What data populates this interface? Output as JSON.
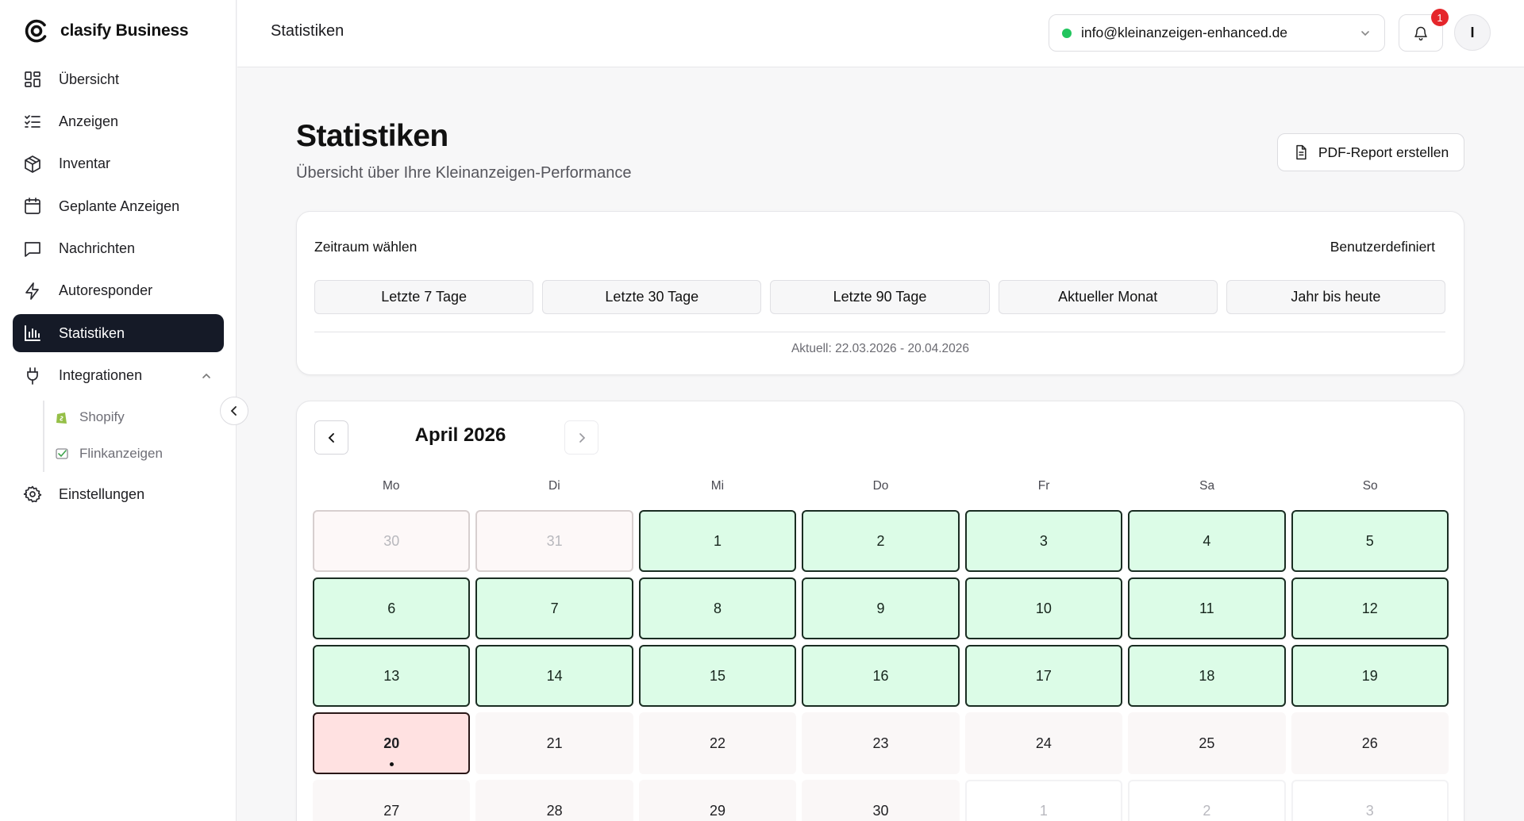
{
  "brand": {
    "name": "clasify Business"
  },
  "sidebar": {
    "items": [
      {
        "label": "Übersicht",
        "icon": "dashboard-icon"
      },
      {
        "label": "Anzeigen",
        "icon": "list-check-icon"
      },
      {
        "label": "Inventar",
        "icon": "box-icon"
      },
      {
        "label": "Geplante Anzeigen",
        "icon": "calendar-icon"
      },
      {
        "label": "Nachrichten",
        "icon": "message-icon"
      },
      {
        "label": "Autoresponder",
        "icon": "lightning-icon"
      },
      {
        "label": "Statistiken",
        "icon": "bar-chart-icon",
        "active": true
      },
      {
        "label": "Integrationen",
        "icon": "plug-icon",
        "expanded": true
      }
    ],
    "subitems": [
      {
        "label": "Shopify",
        "icon": "shopify-icon"
      },
      {
        "label": "Flinkanzeigen",
        "icon": "flinkanzeigen-icon"
      }
    ],
    "settings": {
      "label": "Einstellungen",
      "icon": "gear-icon"
    }
  },
  "topbar": {
    "title": "Statistiken",
    "account_email": "info@kleinanzeigen-enhanced.de",
    "account_status_color": "#22c55e",
    "notification_count": "1",
    "avatar_initial": "I"
  },
  "page": {
    "title": "Statistiken",
    "subtitle": "Übersicht über Ihre Kleinanzeigen-Performance",
    "pdf_button": "PDF-Report erstellen"
  },
  "range": {
    "label": "Zeitraum wählen",
    "custom_label": "Benutzerdefiniert",
    "options": [
      "Letzte 7 Tage",
      "Letzte 30 Tage",
      "Letzte 90 Tage",
      "Aktueller Monat",
      "Jahr bis heute"
    ],
    "current_text": "Aktuell: 22.03.2026 - 20.04.2026"
  },
  "calendar": {
    "month_label": "April 2026",
    "weekdays": [
      "Mo",
      "Di",
      "Mi",
      "Do",
      "Fr",
      "Sa",
      "So"
    ],
    "days": [
      {
        "label": "30",
        "state": "outside-prev"
      },
      {
        "label": "31",
        "state": "outside-prev"
      },
      {
        "label": "1",
        "state": "past"
      },
      {
        "label": "2",
        "state": "past"
      },
      {
        "label": "3",
        "state": "past"
      },
      {
        "label": "4",
        "state": "past"
      },
      {
        "label": "5",
        "state": "past"
      },
      {
        "label": "6",
        "state": "past"
      },
      {
        "label": "7",
        "state": "past"
      },
      {
        "label": "8",
        "state": "past"
      },
      {
        "label": "9",
        "state": "past"
      },
      {
        "label": "10",
        "state": "past"
      },
      {
        "label": "11",
        "state": "past"
      },
      {
        "label": "12",
        "state": "past"
      },
      {
        "label": "13",
        "state": "past"
      },
      {
        "label": "14",
        "state": "past"
      },
      {
        "label": "15",
        "state": "past"
      },
      {
        "label": "16",
        "state": "past"
      },
      {
        "label": "17",
        "state": "past"
      },
      {
        "label": "18",
        "state": "past"
      },
      {
        "label": "19",
        "state": "past"
      },
      {
        "label": "20",
        "state": "today"
      },
      {
        "label": "21",
        "state": "future"
      },
      {
        "label": "22",
        "state": "future"
      },
      {
        "label": "23",
        "state": "future"
      },
      {
        "label": "24",
        "state": "future"
      },
      {
        "label": "25",
        "state": "future"
      },
      {
        "label": "26",
        "state": "future"
      },
      {
        "label": "27",
        "state": "future"
      },
      {
        "label": "28",
        "state": "future"
      },
      {
        "label": "29",
        "state": "future"
      },
      {
        "label": "30",
        "state": "future"
      },
      {
        "label": "1",
        "state": "outside-next"
      },
      {
        "label": "2",
        "state": "outside-next"
      },
      {
        "label": "3",
        "state": "outside-next"
      }
    ]
  }
}
